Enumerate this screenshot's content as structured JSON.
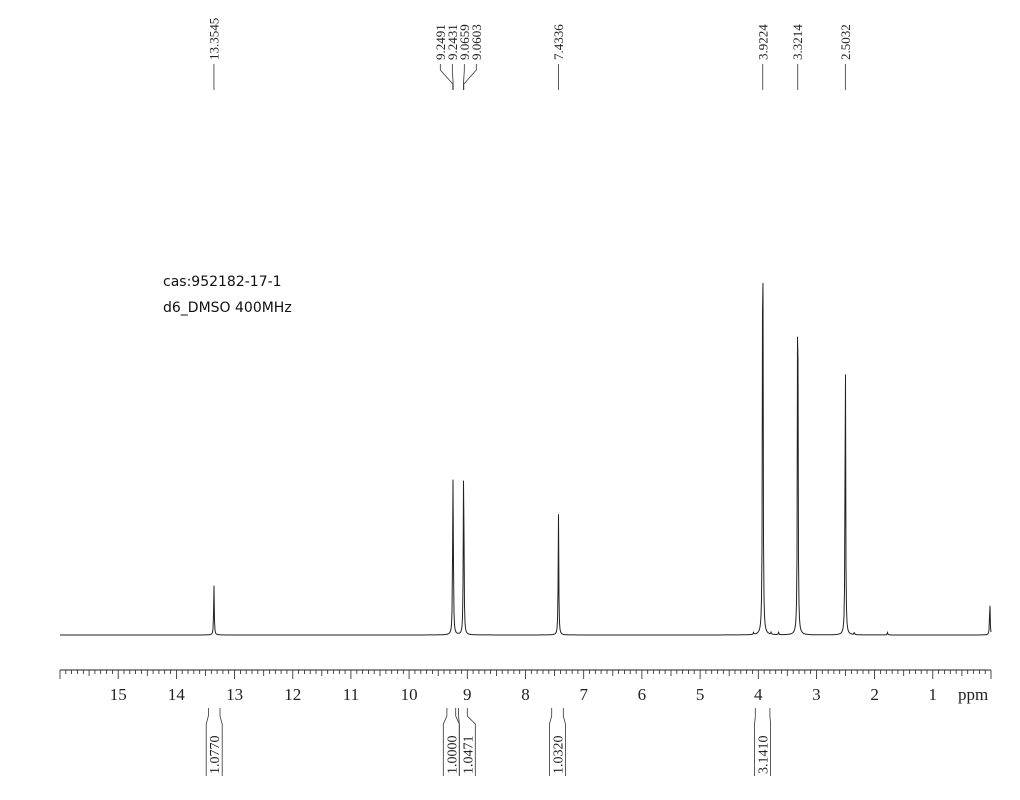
{
  "annotations": {
    "cas": "cas:952182-17-1",
    "solvent": "d6_DMSO 400MHz"
  },
  "chart_data": {
    "type": "line",
    "title": "",
    "xlabel": "ppm",
    "ylabel": "",
    "xlim": [
      16.0,
      0.0
    ],
    "x_reversed": true,
    "grid": false,
    "x_ticks": [
      15,
      14,
      13,
      12,
      11,
      10,
      9,
      8,
      7,
      6,
      5,
      4,
      3,
      2,
      1
    ],
    "peaks": [
      {
        "ppm": 13.3545,
        "intensity": 0.1,
        "label": "13.3545"
      },
      {
        "ppm": 9.2491,
        "intensity": 0.2,
        "label": "9.2491"
      },
      {
        "ppm": 9.2431,
        "intensity": 0.18,
        "label": "9.2431"
      },
      {
        "ppm": 9.0659,
        "intensity": 0.2,
        "label": "9.0659"
      },
      {
        "ppm": 9.0603,
        "intensity": 0.18,
        "label": "9.0603"
      },
      {
        "ppm": 7.4336,
        "intensity": 0.24,
        "label": "7.4336"
      },
      {
        "ppm": 3.9224,
        "intensity": 1.0,
        "label": "3.9224"
      },
      {
        "ppm": 3.3214,
        "intensity": 0.85,
        "label": "3.3214"
      },
      {
        "ppm": 2.5032,
        "intensity": 0.61,
        "label": "2.5032"
      }
    ],
    "minor_peaks": [
      {
        "ppm": 4.08,
        "intensity": 0.004
      },
      {
        "ppm": 3.78,
        "intensity": 0.004
      },
      {
        "ppm": 3.65,
        "intensity": 0.005
      },
      {
        "ppm": 2.35,
        "intensity": 0.005
      },
      {
        "ppm": 1.78,
        "intensity": 0.005
      },
      {
        "ppm": 0.02,
        "intensity": 0.07
      }
    ],
    "integrals": [
      {
        "from": 13.45,
        "to": 13.25,
        "value": "1.0770"
      },
      {
        "from": 9.35,
        "to": 9.2,
        "value": "1.0000"
      },
      {
        "from": 9.15,
        "to": 9.0,
        "value": "1.0471"
      },
      {
        "from": 7.55,
        "to": 7.35,
        "value": "1.0320"
      },
      {
        "from": 4.05,
        "to": 3.8,
        "value": "3.1410"
      }
    ]
  }
}
